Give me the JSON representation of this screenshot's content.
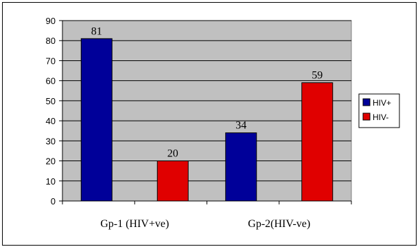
{
  "chart_data": {
    "type": "bar",
    "categories": [
      "Gp-1 (HIV+ve)",
      "Gp-2(HIV-ve)"
    ],
    "series": [
      {
        "name": "HIV+",
        "values": [
          81,
          34
        ],
        "color": "#000099"
      },
      {
        "name": "HIV-",
        "values": [
          20,
          59
        ],
        "color": "#e00000"
      }
    ],
    "ylim": [
      0,
      90
    ],
    "yticks": [
      0,
      10,
      20,
      30,
      40,
      50,
      60,
      70,
      80,
      90
    ],
    "title": "",
    "xlabel": "",
    "ylabel": "",
    "grid": true,
    "legend_position": "right",
    "plot_background": "#c0c0c0",
    "gridline_color": "#000000"
  }
}
